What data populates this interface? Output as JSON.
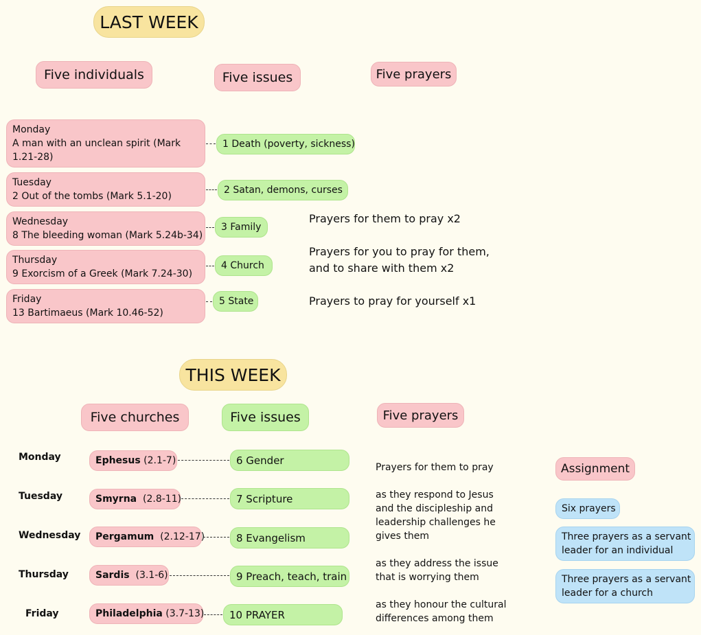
{
  "last_week": {
    "title": "LAST WEEK",
    "headers": {
      "individuals": "Five individuals",
      "issues": "Five issues",
      "prayers": "Five prayers"
    },
    "days": [
      {
        "day": "Monday",
        "text1": "A man with an unclean spirit (Mark",
        "text2": "1.21-28)",
        "issue": "1 Death (poverty, sickness)"
      },
      {
        "day": "Tuesday",
        "text1": "2 Out of the tombs (Mark 5.1-20)",
        "issue": "2 Satan, demons, curses"
      },
      {
        "day": "Wednesday",
        "text1": "8 The bleeding woman (Mark 5.24b-34)",
        "issue": "3 Family"
      },
      {
        "day": "Thursday",
        "text1": "9 Exorcism of a Greek (Mark 7.24-30)",
        "issue": "4 Church"
      },
      {
        "day": "Friday",
        "text1": "13 Bartimaeus (Mark 10.46-52)",
        "issue": "5 State"
      }
    ],
    "prayers": {
      "p1": "Prayers for them to pray x2",
      "p2a": "Prayers for you to pray for them,",
      "p2b": "and to share with them x2",
      "p3": "Prayers to pray for yourself x1"
    }
  },
  "this_week": {
    "title": "THIS WEEK",
    "headers": {
      "churches": "Five churches",
      "issues": "Five issues",
      "prayers": "Five prayers",
      "assignment": "Assignment"
    },
    "rows": [
      {
        "day": "Monday",
        "church": "Ephesus",
        "ref": " (2.1-7)",
        "issue": "6 Gender"
      },
      {
        "day": "Tuesday",
        "church": "Smyrna",
        "ref": "  (2.8-11)",
        "issue": "7 Scripture"
      },
      {
        "day": "Wednesday",
        "church": "Pergamum",
        "ref": "  (2.12-17)",
        "issue": "8 Evangelism"
      },
      {
        "day": "Thursday",
        "church": "Sardis",
        "ref": "  (3.1-6)",
        "issue": "9 Preach, teach, train"
      },
      {
        "day": "Friday",
        "church": "Philadelphia",
        "ref": " (3.7-13)",
        "issue": "10 PRAYER"
      }
    ],
    "prayer_text": {
      "t1": "Prayers for them to pray",
      "t2": [
        "as they respond to Jesus",
        "and the discipleship and",
        "leadership challenges he",
        "gives them"
      ],
      "t3": [
        "as they address the issue",
        "that is worrying them"
      ],
      "t4": [
        "as they honour the cultural",
        "differences among them"
      ]
    },
    "assignment": {
      "a1": "Six prayers",
      "a2": [
        "Three prayers as a servant",
        "leader for an individual"
      ],
      "a3": [
        "Three prayers as a servant",
        "leader for a church"
      ]
    }
  }
}
